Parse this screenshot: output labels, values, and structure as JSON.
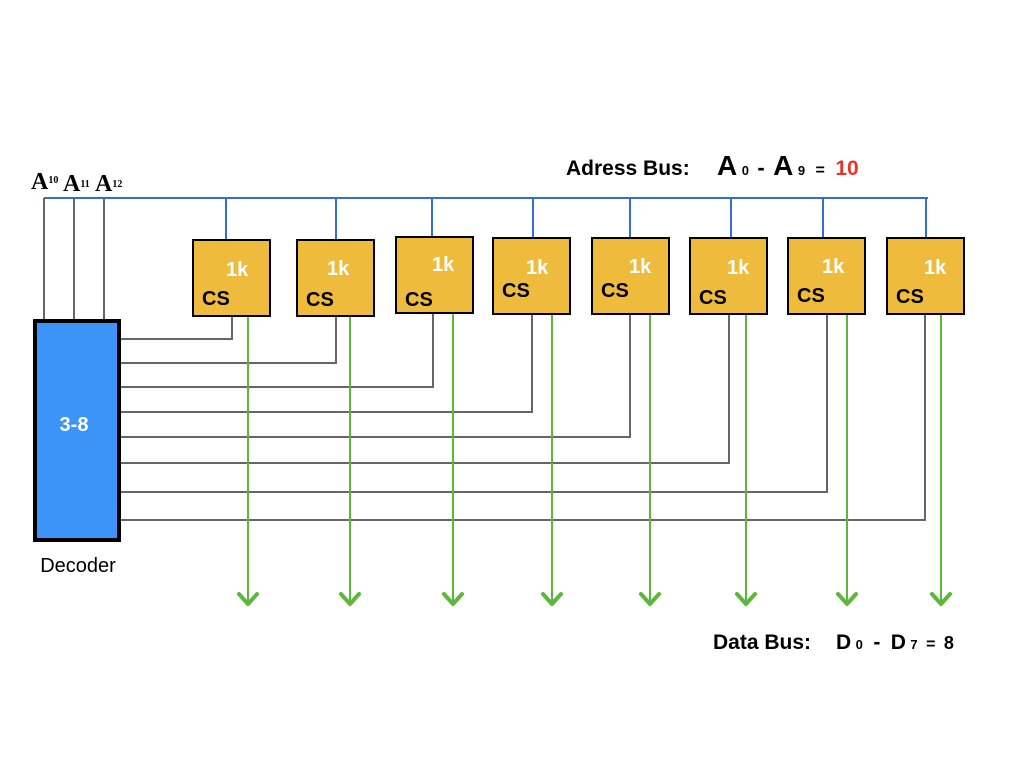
{
  "address_bus": {
    "label": "Adress Bus:",
    "start_letter": "A",
    "start_sub": "0",
    "separator": "-",
    "end_letter": "A",
    "end_sub": "9",
    "equals": "=",
    "count": "10",
    "count_color": "#e8352a"
  },
  "decoder_inputs": [
    {
      "letter": "A",
      "sub": "10"
    },
    {
      "letter": "A",
      "sub": "11"
    },
    {
      "letter": "A",
      "sub": "12"
    }
  ],
  "decoder": {
    "label": "3-8",
    "caption": "Decoder",
    "fill": "#3c93f8"
  },
  "chips": [
    {
      "size": "1k",
      "cs": "CS"
    },
    {
      "size": "1k",
      "cs": "CS"
    },
    {
      "size": "1k",
      "cs": "CS"
    },
    {
      "size": "1k",
      "cs": "CS"
    },
    {
      "size": "1k",
      "cs": "CS"
    },
    {
      "size": "1k",
      "cs": "CS"
    },
    {
      "size": "1k",
      "cs": "CS"
    },
    {
      "size": "1k",
      "cs": "CS"
    }
  ],
  "chip_fill": "#efbb3d",
  "bus_color": "#2f6fd6",
  "select_line_color": "#666666",
  "data_line_color": "#5cb83a",
  "data_bus": {
    "label": "Data Bus:",
    "start_letter": "D",
    "start_sub": "0",
    "separator": "-",
    "end_letter": "D",
    "end_sub": "7",
    "equals": "=",
    "count": "8"
  }
}
